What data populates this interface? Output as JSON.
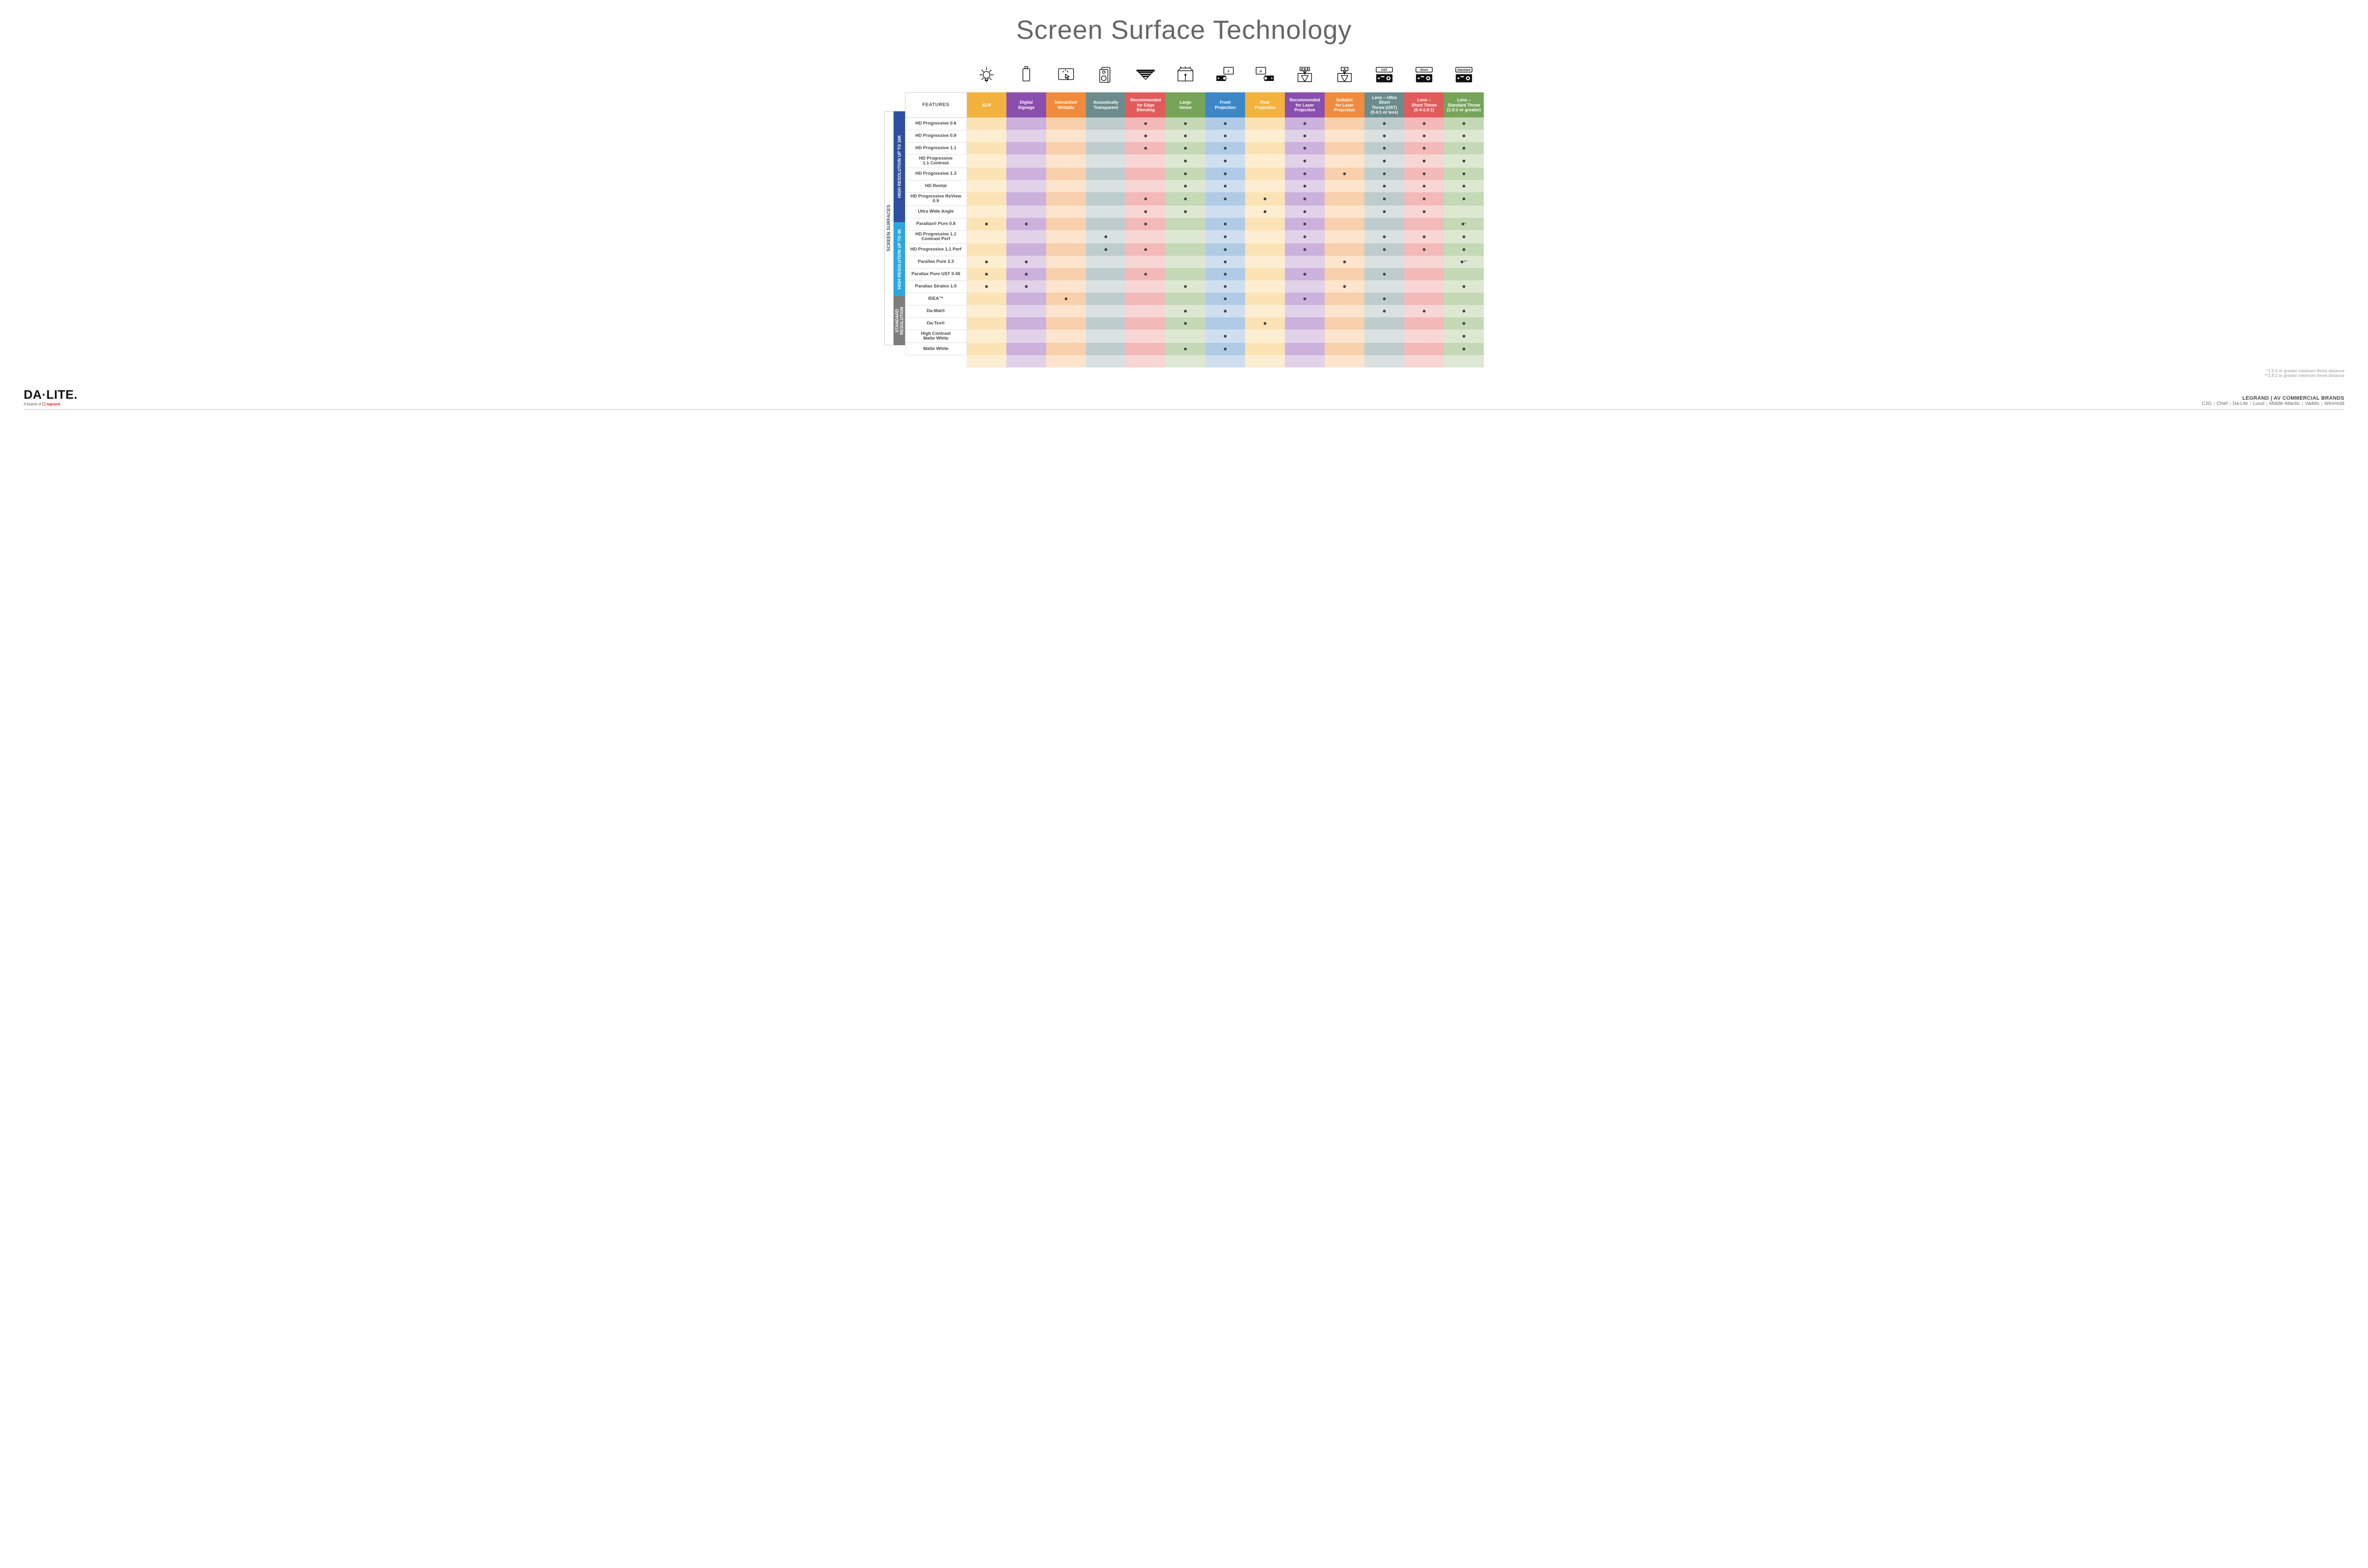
{
  "title": "Screen Surface Technology",
  "featuresHeader": "FEATURES",
  "columns": [
    {
      "key": "alr",
      "label": "ALR",
      "bg": "#f3b13e",
      "light": "#fbe3b6",
      "lighter": "#fdeed2"
    },
    {
      "key": "signage",
      "label": "Digital\nSignage",
      "bg": "#8a4fae",
      "light": "#cbb1dc",
      "lighter": "#e1d2ea"
    },
    {
      "key": "interactive",
      "label": "Interactive/\nWritable",
      "bg": "#f08b3d",
      "light": "#f9d0ac",
      "lighter": "#fce4cd"
    },
    {
      "key": "acoustic",
      "label": "Acoustically\nTransparent",
      "bg": "#6b8b8c",
      "light": "#bfcccd",
      "lighter": "#d9e1e1"
    },
    {
      "key": "edge",
      "label": "Recommended\nfor Edge\nBlending",
      "bg": "#e25b5b",
      "light": "#f3b9b9",
      "lighter": "#f8d6d6"
    },
    {
      "key": "venue",
      "label": "Large\nVenue",
      "bg": "#76a55a",
      "light": "#c5d9b7",
      "lighter": "#dde8d3"
    },
    {
      "key": "front",
      "label": "Front\nProjection",
      "bg": "#3d87c8",
      "light": "#afcbe6",
      "lighter": "#d0dff0"
    },
    {
      "key": "rear",
      "label": "Rear\nProjection",
      "bg": "#f3b13e",
      "light": "#fbe3b6",
      "lighter": "#fdeed2"
    },
    {
      "key": "reclaser",
      "label": "Recommended\nfor Laser\nProjection",
      "bg": "#8a4fae",
      "light": "#cbb1dc",
      "lighter": "#e1d2ea"
    },
    {
      "key": "suitlaser",
      "label": "Suitable\nfor Laser\nProjection",
      "bg": "#f08b3d",
      "light": "#f9d0ac",
      "lighter": "#fce4cd"
    },
    {
      "key": "ust",
      "label": "Lens – Ultra Short\nThrow (UST)\n(0.4:1 or less)",
      "bg": "#6b8b8c",
      "light": "#bfcccd",
      "lighter": "#d9e1e1"
    },
    {
      "key": "short",
      "label": "Lens –\nShort Throw\n(0.4-1.0:1)",
      "bg": "#e25b5b",
      "light": "#f3b9b9",
      "lighter": "#f8d6d6"
    },
    {
      "key": "std",
      "label": "Lens –\nStandard Throw\n(1.0:1 or greater)",
      "bg": "#76a55a",
      "light": "#c5d9b7",
      "lighter": "#dde8d3"
    }
  ],
  "sideOuter": "SCREEN SURFACES",
  "groups": [
    {
      "key": "g16k",
      "label": "HIGH RESOLUTION UP TO 16K",
      "bg": "#2f4f9e",
      "rows": [
        {
          "label": "HD Progressive 0.6",
          "dots": {
            "edge": 1,
            "venue": 1,
            "front": 1,
            "reclaser": 1,
            "ust": 1,
            "short": 1,
            "std": 1
          }
        },
        {
          "label": "HD Progressive 0.9",
          "dots": {
            "edge": 1,
            "venue": 1,
            "front": 1,
            "reclaser": 1,
            "ust": 1,
            "short": 1,
            "std": 1
          }
        },
        {
          "label": "HD Progressive 1.1",
          "dots": {
            "edge": 1,
            "venue": 1,
            "front": 1,
            "reclaser": 1,
            "ust": 1,
            "short": 1,
            "std": 1
          }
        },
        {
          "label": "HD Progressive\n1.1 Contrast",
          "dots": {
            "venue": 1,
            "front": 1,
            "reclaser": 1,
            "ust": 1,
            "short": 1,
            "std": 1
          }
        },
        {
          "label": "HD Progressive 1.3",
          "dots": {
            "venue": 1,
            "front": 1,
            "reclaser": 1,
            "suitlaser": 1,
            "ust": 1,
            "short": 1,
            "std": 1
          }
        },
        {
          "label": "HD Rental",
          "dots": {
            "venue": 1,
            "front": 1,
            "reclaser": 1,
            "ust": 1,
            "short": 1,
            "std": 1
          }
        },
        {
          "label": "HD Progressive ReView 0.9",
          "dots": {
            "edge": 1,
            "venue": 1,
            "front": 1,
            "rear": 1,
            "reclaser": 1,
            "ust": 1,
            "short": 1,
            "std": 1
          }
        },
        {
          "label": "Ultra Wide Angle",
          "dots": {
            "edge": 1,
            "venue": 1,
            "rear": 1,
            "reclaser": 1,
            "ust": 1,
            "short": 1
          }
        },
        {
          "label": "Parallax® Pure 0.8",
          "dots": {
            "alr": 1,
            "signage": 1,
            "edge": 1,
            "front": 1,
            "reclaser": 1,
            "std": "*"
          }
        }
      ]
    },
    {
      "key": "g4k",
      "label": "HIGH RESOLUTION UP TO 4K",
      "bg": "#2ca6df",
      "rows": [
        {
          "label": "HD Progressive 1.1\nContrast Perf",
          "dots": {
            "acoustic": 1,
            "front": 1,
            "reclaser": 1,
            "ust": 1,
            "short": 1,
            "std": 1
          }
        },
        {
          "label": "HD Progressive 1.1 Perf",
          "dots": {
            "acoustic": 1,
            "edge": 1,
            "front": 1,
            "reclaser": 1,
            "ust": 1,
            "short": 1,
            "std": 1
          }
        },
        {
          "label": "Parallax Pure 2.3",
          "dots": {
            "alr": 1,
            "signage": 1,
            "front": 1,
            "suitlaser": 1,
            "std": "**"
          }
        },
        {
          "label": "Parallax Pure UST 0.45",
          "dots": {
            "alr": 1,
            "signage": 1,
            "edge": 1,
            "front": 1,
            "reclaser": 1,
            "ust": 1
          }
        },
        {
          "label": "Parallax Stratos 1.0",
          "dots": {
            "alr": 1,
            "signage": 1,
            "venue": 1,
            "front": 1,
            "suitlaser": 1,
            "std": 1
          }
        },
        {
          "label": "IDEA™",
          "dots": {
            "interactive": 1,
            "front": 1,
            "reclaser": 1,
            "ust": 1
          }
        }
      ]
    },
    {
      "key": "gstd",
      "label": "STANDARD\nRESOLUTION",
      "bg": "#7d7d7d",
      "rows": [
        {
          "label": "Da-Mat®",
          "dots": {
            "venue": 1,
            "front": 1,
            "ust": 1,
            "short": 1,
            "std": 1
          }
        },
        {
          "label": "Da-Tex®",
          "dots": {
            "venue": 1,
            "rear": 1,
            "std": 1
          }
        },
        {
          "label": "High Contrast\nMatte White",
          "dots": {
            "front": 1,
            "std": 1
          }
        },
        {
          "label": "Matte White",
          "dots": {
            "venue": 1,
            "front": 1,
            "std": 1
          }
        }
      ]
    }
  ],
  "footnotes": [
    "*1.5:1 or greater minimum throw distance",
    "**1.8:1 or greater minimum throw distance"
  ],
  "brand": {
    "main": "DA·LITE.",
    "sub_prefix": "A brand of ",
    "sub_brand": "legrand"
  },
  "footerRight": {
    "line1": "LEGRAND | AV COMMERCIAL BRANDS",
    "brands": [
      "C2G",
      "Chief",
      "Da-Lite",
      "Luxul",
      "Middle Atlantic",
      "Vaddio",
      "Wiremold"
    ]
  },
  "icons": {
    "ust": "UST",
    "short": "Short",
    "std": "Standard",
    "front": "F",
    "rear": "R"
  }
}
